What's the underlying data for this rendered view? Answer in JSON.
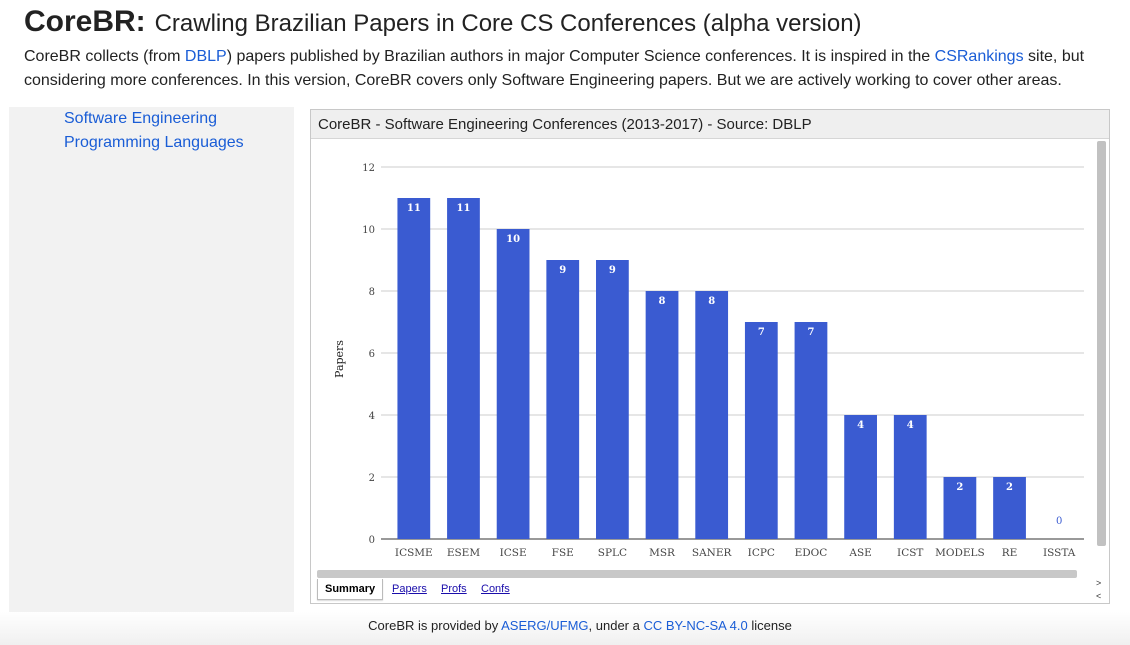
{
  "header": {
    "brand": "CoreBR:",
    "subtitle": "Crawling Brazilian Papers in Core CS Conferences (alpha version)"
  },
  "intro": {
    "part1": "CoreBR collects (from ",
    "dblp_link": "DBLP",
    "part2": ") papers published by Brazilian authors in major Computer Science conferences. It is inspired in the ",
    "csrankings_link": "CSRankings",
    "part3": " site, but considering more conferences. In this version, CoreBR covers only Software Engineering papers. But we are actively working to cover other areas."
  },
  "sidebar": {
    "items": [
      {
        "label": "Software Engineering"
      },
      {
        "label": "Programming Languages"
      }
    ]
  },
  "panel": {
    "title": "CoreBR - Software Engineering Conferences (2013-2017) - Source: DBLP",
    "tabs": [
      {
        "label": "Summary"
      },
      {
        "label": "Papers"
      },
      {
        "label": "Profs"
      },
      {
        "label": "Confs"
      }
    ],
    "scroll_right": ">",
    "scroll_left": "<"
  },
  "chart_data": {
    "type": "bar",
    "title": "",
    "xlabel": "",
    "ylabel": "Papers",
    "ylim": [
      0,
      12
    ],
    "yticks": [
      0,
      2,
      4,
      6,
      8,
      10,
      12
    ],
    "grid": true,
    "bar_color": "#3a5bd1",
    "categories": [
      "ICSME",
      "ESEM",
      "ICSE",
      "FSE",
      "SPLC",
      "MSR",
      "SANER",
      "ICPC",
      "EDOC",
      "ASE",
      "ICST",
      "MODELS",
      "RE",
      "ISSTA"
    ],
    "values": [
      11,
      11,
      10,
      9,
      9,
      8,
      8,
      7,
      7,
      4,
      4,
      2,
      2,
      0
    ],
    "data_labels": true
  },
  "footer": {
    "part1": "CoreBR is provided by ",
    "aserg_link": "ASERG/UFMG",
    "part2": ", under a ",
    "license_link": "CC BY-NC-SA 4.0",
    "part3": " license"
  }
}
